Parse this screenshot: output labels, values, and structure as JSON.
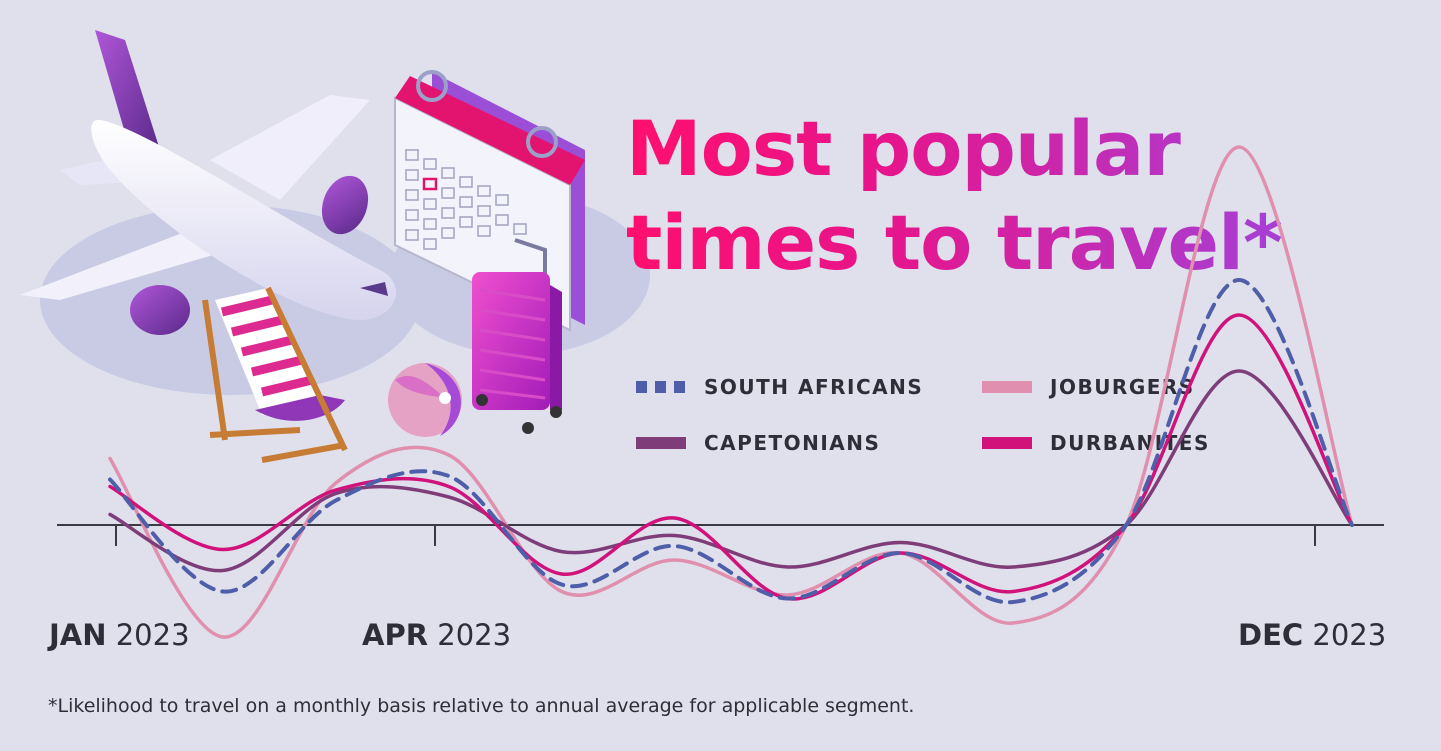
{
  "title_lines": [
    "Most popular",
    "times to travel*"
  ],
  "footnote": "*Likelihood to travel on a monthly basis relative to annual average for applicable segment.",
  "legend": [
    {
      "label": "SOUTH AFRICANS",
      "color": "#4f5ea8",
      "style": "dashed"
    },
    {
      "label": "JOBURGERS",
      "color": "#e08fae",
      "style": "solid"
    },
    {
      "label": "CAPETONIANS",
      "color": "#7e3d78",
      "style": "solid"
    },
    {
      "label": "DURBANITES",
      "color": "#d0127a",
      "style": "solid"
    }
  ],
  "axis_labels": [
    {
      "month": "JAN",
      "year": "2023"
    },
    {
      "month": "APR",
      "year": "2023"
    },
    {
      "month": "DEC",
      "year": "2023"
    }
  ],
  "illustration_icons": [
    "airplane-icon",
    "calendar-icon",
    "suitcase-icon",
    "beach-ball-icon",
    "beach-chair-icon"
  ],
  "chart_data": {
    "type": "line",
    "x": [
      1,
      2,
      3,
      4,
      5,
      6,
      7,
      8,
      9,
      10,
      11,
      12
    ],
    "ylim": [
      -1.8,
      5.8
    ],
    "series": [
      {
        "name": "SOUTH AFRICANS",
        "color": "#4f5ea8",
        "dashed": true,
        "values": [
          0.65,
          -0.95,
          0.35,
          0.7,
          -0.85,
          -0.3,
          -1.05,
          -0.4,
          -1.1,
          0.0,
          3.5,
          0.0
        ]
      },
      {
        "name": "JOBURGERS",
        "color": "#e08fae",
        "dashed": false,
        "values": [
          0.95,
          -1.6,
          0.6,
          1.0,
          -0.95,
          -0.5,
          -1.0,
          -0.4,
          -1.4,
          0.0,
          5.4,
          0.0
        ]
      },
      {
        "name": "CAPETONIANS",
        "color": "#7e3d78",
        "dashed": false,
        "values": [
          0.15,
          -0.65,
          0.45,
          0.4,
          -0.38,
          -0.15,
          -0.6,
          -0.25,
          -0.6,
          0.0,
          2.2,
          0.0
        ]
      },
      {
        "name": "DURBANITES",
        "color": "#d0127a",
        "dashed": false,
        "values": [
          0.55,
          -0.35,
          0.5,
          0.55,
          -0.7,
          0.1,
          -1.05,
          -0.4,
          -0.95,
          0.0,
          3.0,
          0.0
        ]
      }
    ]
  }
}
